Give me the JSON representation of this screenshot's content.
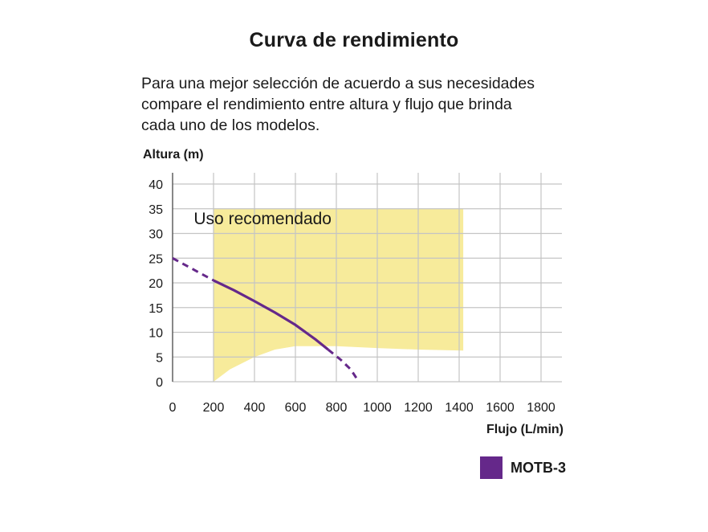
{
  "title": "Curva de rendimiento",
  "description": [
    "Para una mejor selección de acuerdo a sus necesidades",
    "compare el rendimiento entre altura y flujo que brinda",
    "cada uno de los modelos."
  ],
  "colors": {
    "region": "#f7eb9b",
    "curve": "#65288a",
    "grid": "#c4c4c4",
    "axis": "#555555"
  },
  "chart_data": {
    "type": "line",
    "xlabel": "Flujo (L/min)",
    "ylabel": "Altura (m)",
    "xlim": [
      0,
      1900
    ],
    "ylim": [
      0,
      40
    ],
    "xticks": [
      0,
      200,
      400,
      600,
      800,
      1000,
      1200,
      1400,
      1600,
      1800
    ],
    "yticks": [
      0,
      5,
      10,
      15,
      20,
      25,
      30,
      35,
      40
    ],
    "grid": true,
    "recommended_region": {
      "label": "Uso recomendado",
      "top": 35,
      "x_range": [
        200,
        1420
      ],
      "lower_boundary": [
        [
          200,
          0
        ],
        [
          280,
          2.5
        ],
        [
          400,
          5
        ],
        [
          500,
          6.5
        ],
        [
          600,
          7.2
        ],
        [
          800,
          7.2
        ],
        [
          1000,
          6.8
        ],
        [
          1200,
          6.5
        ],
        [
          1420,
          6.3
        ]
      ]
    },
    "series": [
      {
        "name": "MOTB-3",
        "solid": [
          [
            200,
            20.5
          ],
          [
            300,
            18.5
          ],
          [
            400,
            16.3
          ],
          [
            500,
            14
          ],
          [
            600,
            11.5
          ],
          [
            700,
            8.5
          ],
          [
            760,
            6.5
          ]
        ],
        "dashed_start": [
          [
            0,
            25
          ],
          [
            200,
            20.5
          ]
        ],
        "dashed_end": [
          [
            760,
            6.5
          ],
          [
            820,
            4.5
          ],
          [
            870,
            2.5
          ],
          [
            910,
            0
          ]
        ]
      }
    ],
    "legend": "bottom-right"
  }
}
